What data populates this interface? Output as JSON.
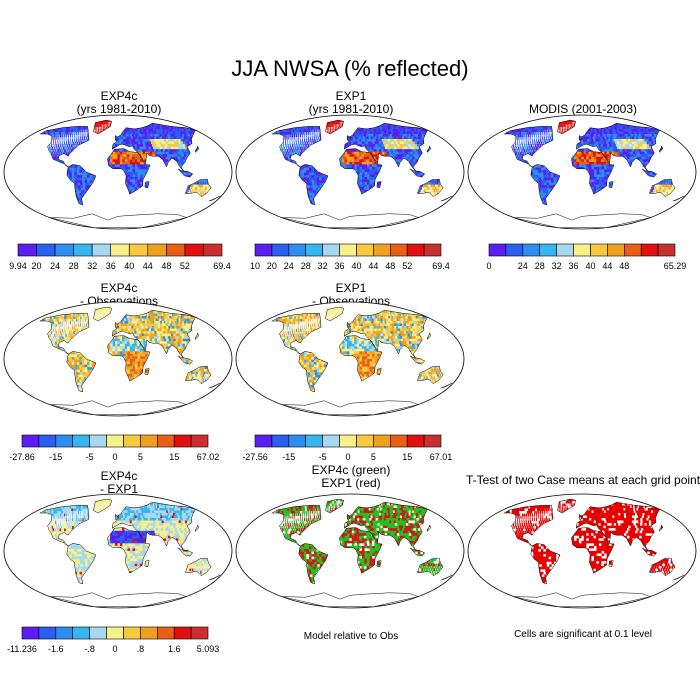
{
  "title": "JJA NWSA (% reflected)",
  "palette": [
    "#5a1ff0",
    "#2a5ff0",
    "#2e8ef0",
    "#38b4ee",
    "#a8d8f0",
    "#f8f088",
    "#f8c840",
    "#f0a020",
    "#e86018",
    "#e01010",
    "#c83030"
  ],
  "panels": [
    {
      "id": "p1",
      "title": [
        "EXP4c",
        "(yrs 1981-2010)"
      ],
      "kind": "abs",
      "labels": [
        "9.94",
        "20",
        "24",
        "28",
        "32",
        "36",
        "40",
        "44",
        "48",
        "52",
        "69.4"
      ]
    },
    {
      "id": "p2",
      "title": [
        "EXP1",
        "(yrs 1981-2010)"
      ],
      "kind": "abs",
      "labels": [
        "10",
        "20",
        "24",
        "28",
        "32",
        "36",
        "40",
        "44",
        "48",
        "52",
        "69.4"
      ]
    },
    {
      "id": "p3",
      "title": [
        "MODIS (2001-2003)"
      ],
      "kind": "abs",
      "labels": [
        "0",
        "",
        "24",
        "28",
        "32",
        "36",
        "40",
        "44",
        "48",
        "",
        "65.29"
      ]
    },
    {
      "id": "p4",
      "title": [
        "EXP4c",
        "- Observations"
      ],
      "kind": "diff",
      "labels": [
        "-27.86",
        "-15",
        "-5",
        "0",
        "5",
        "15",
        "67.02"
      ]
    },
    {
      "id": "p5",
      "title": [
        "EXP1",
        "- Observations"
      ],
      "kind": "diff",
      "labels": [
        "-27.56",
        "-15",
        "-5",
        "0",
        "5",
        "15",
        "67.01"
      ]
    },
    {
      "id": "p6",
      "title": [
        "EXP4c",
        "- EXP1"
      ],
      "kind": "diff2",
      "labels": [
        "-11.236",
        "-1.6",
        "-.8",
        "0",
        ".8",
        "1.6",
        "5.093"
      ]
    },
    {
      "id": "p7",
      "title": [
        "EXP4c (green)",
        "EXP1 (red)"
      ],
      "kind": "better",
      "note": "Model relative to Obs"
    },
    {
      "id": "p8",
      "title": [
        "T-Test of two Case means at each grid point"
      ],
      "kind": "ttest",
      "note": "Cells are significant at 0.1 level"
    }
  ],
  "chart_data": [
    {
      "type": "heatmap",
      "title": "EXP4c (yrs 1981-2010)",
      "colorbar_min": 9.94,
      "colorbar_max": 69.4,
      "levels": [
        20,
        24,
        28,
        32,
        36,
        40,
        44,
        48,
        52
      ]
    },
    {
      "type": "heatmap",
      "title": "EXP1 (yrs 1981-2010)",
      "colorbar_min": 10,
      "colorbar_max": 69.4,
      "levels": [
        20,
        24,
        28,
        32,
        36,
        40,
        44,
        48,
        52
      ]
    },
    {
      "type": "heatmap",
      "title": "MODIS (2001-2003)",
      "colorbar_min": 0,
      "colorbar_max": 65.29,
      "levels": [
        24,
        28,
        32,
        36,
        40,
        44,
        48
      ]
    },
    {
      "type": "heatmap",
      "title": "EXP4c - Observations",
      "colorbar_min": -27.86,
      "colorbar_max": 67.02,
      "levels": [
        -15,
        -5,
        0,
        5,
        15
      ]
    },
    {
      "type": "heatmap",
      "title": "EXP1 - Observations",
      "colorbar_min": -27.56,
      "colorbar_max": 67.01,
      "levels": [
        -15,
        -5,
        0,
        5,
        15
      ]
    },
    {
      "type": "heatmap",
      "title": "EXP4c - EXP1",
      "colorbar_min": -11.236,
      "colorbar_max": 5.093,
      "levels": [
        -1.6,
        -0.8,
        0,
        0.8,
        1.6
      ]
    },
    {
      "type": "heatmap",
      "title": "EXP4c (green) EXP1 (red)",
      "legend": "Model relative to Obs"
    },
    {
      "type": "heatmap",
      "title": "T-Test of two Case means at each grid point",
      "legend": "Cells are significant at 0.1 level"
    }
  ]
}
